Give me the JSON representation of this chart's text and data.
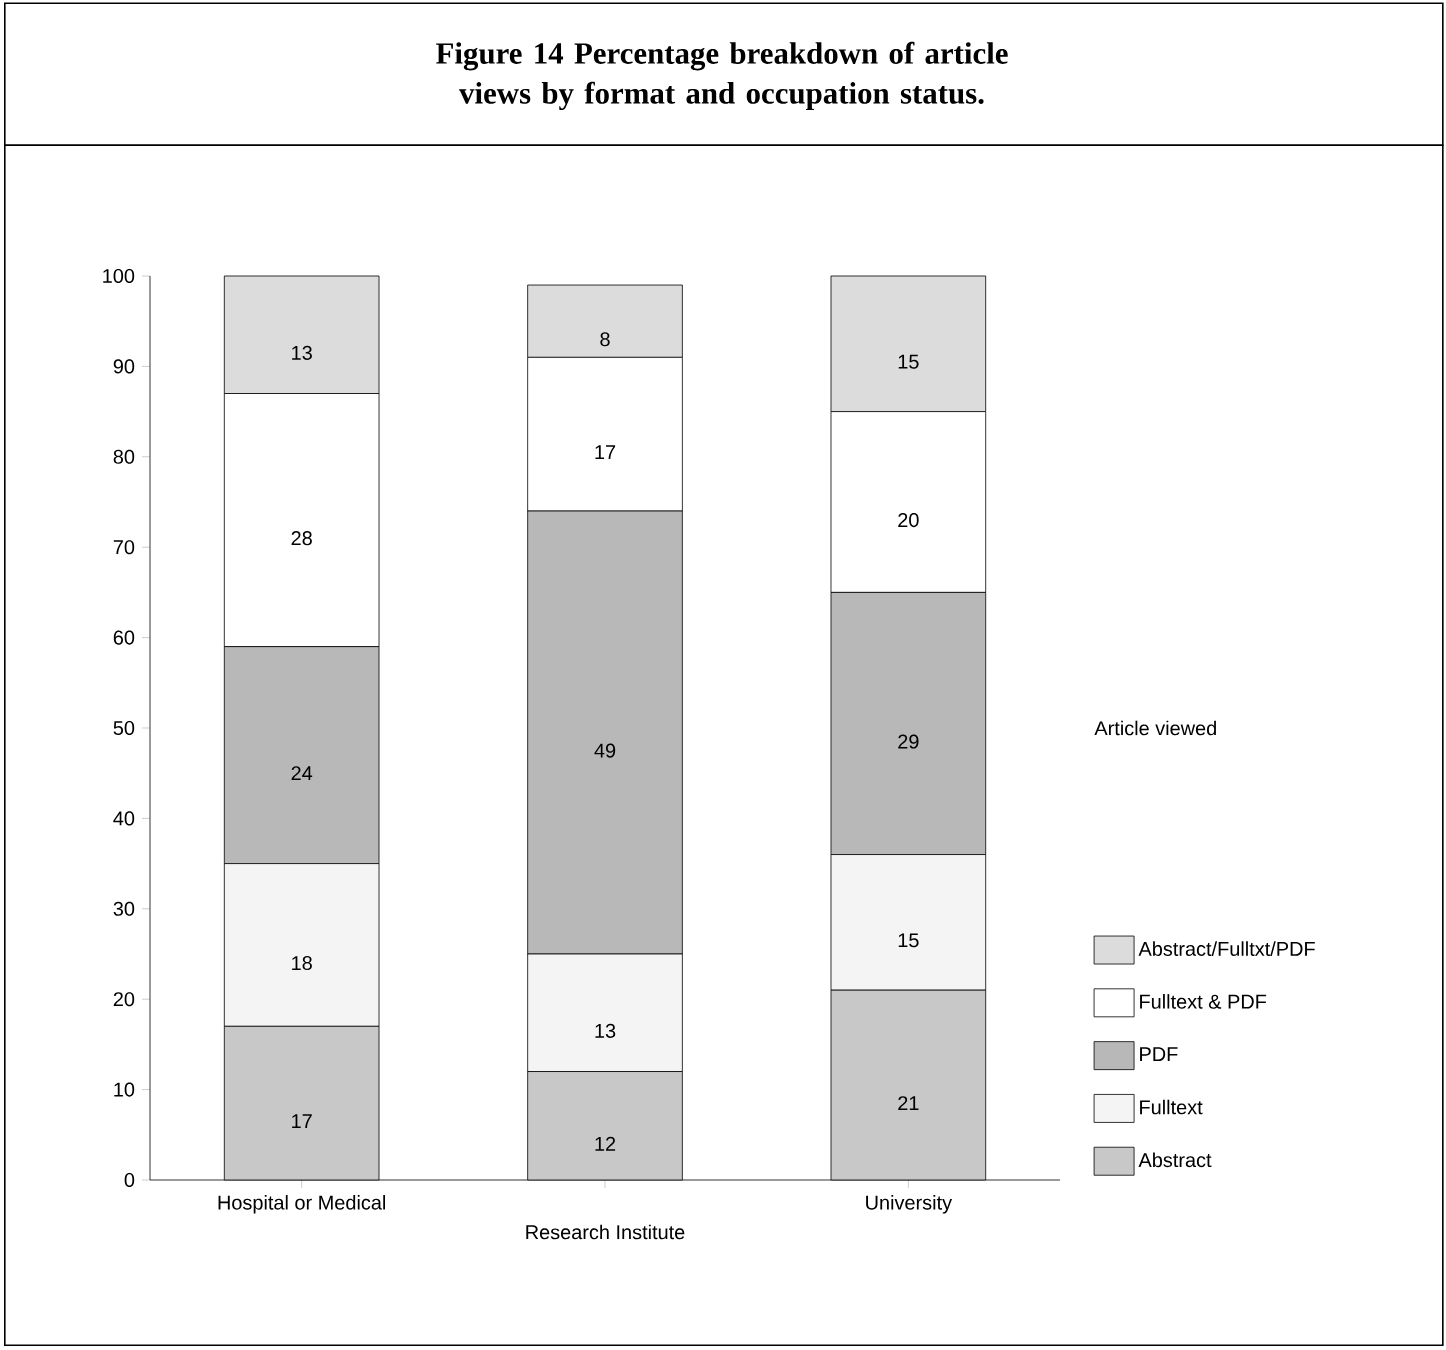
{
  "chart_data": {
    "type": "bar",
    "stacked": true,
    "title": "Figure 14 Percentage breakdown of article views by format and occupation status.",
    "categories": [
      "Hospital or Medical",
      "Research Institute",
      "University"
    ],
    "legend_title": "Article viewed",
    "legend": "right",
    "data_labels": true,
    "ylim": [
      0,
      100
    ],
    "yticks": [
      0,
      10,
      20,
      30,
      40,
      50,
      60,
      70,
      80,
      90,
      100
    ],
    "series": [
      {
        "name": "Abstract",
        "color": "#c8c8c8",
        "values": [
          17,
          12,
          21
        ]
      },
      {
        "name": "Fulltext",
        "color": "#f4f4f4",
        "values": [
          18,
          13,
          15
        ]
      },
      {
        "name": "PDF",
        "color": "#b8b8b8",
        "values": [
          24,
          49,
          29
        ]
      },
      {
        "name": "Fulltext & PDF",
        "color": "#ffffff",
        "values": [
          28,
          17,
          20
        ]
      },
      {
        "name": "Abstract/Fulltxt/PDF",
        "color": "#dcdcdc",
        "values": [
          13,
          8,
          15
        ]
      }
    ]
  }
}
